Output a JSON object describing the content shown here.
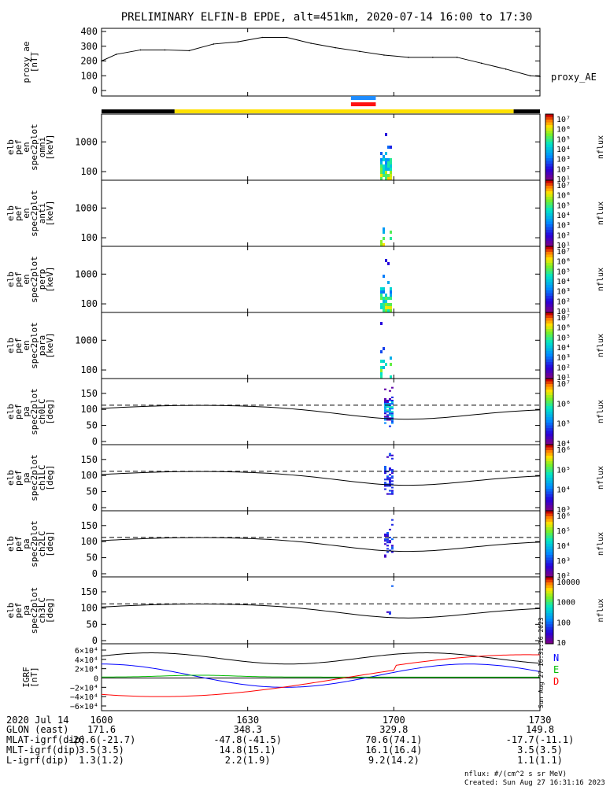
{
  "title": "PRELIMINARY ELFIN-B EPDE, alt=451km, 2020-07-14 16:00 to 17:30",
  "colors": {
    "black": "#000000",
    "yellow": "#ffe000",
    "blue": "#1e8cff",
    "red": "#ff1010",
    "grf_n": "#0000ff",
    "grf_e": "#00bb00",
    "grf_d": "#ff0000"
  },
  "chart_data": [
    {
      "type": "line",
      "id": "proxy_ae",
      "ylabel": [
        "proxy_ae",
        "[nT]"
      ],
      "series_label": "proxy_AE",
      "ylim": [
        0,
        400
      ],
      "yticks": [
        "400",
        "300",
        "200",
        "100",
        "0"
      ],
      "x": [
        0,
        3,
        8,
        13,
        18,
        23,
        28,
        33,
        38,
        43,
        48,
        53,
        58,
        63,
        68,
        73,
        78,
        83,
        88,
        90
      ],
      "values": [
        200,
        245,
        275,
        275,
        270,
        315,
        330,
        360,
        360,
        320,
        290,
        265,
        240,
        225,
        225,
        225,
        185,
        145,
        100,
        95
      ]
    },
    {
      "type": "bar",
      "id": "orbit_bar",
      "segments": [
        {
          "x0": 0,
          "x1": 15,
          "color": "black"
        },
        {
          "x0": 15,
          "x1": 84.6,
          "color": "yellow"
        },
        {
          "x0": 84.6,
          "x1": 90,
          "color": "black"
        }
      ],
      "markers": [
        {
          "x0": 51.2,
          "x1": 56.3,
          "color": "blue"
        },
        {
          "x0": 51.2,
          "x1": 56.3,
          "color": "red"
        }
      ]
    },
    {
      "type": "heatmap",
      "id": "omni",
      "ylabel": [
        "elb",
        "pef",
        "en",
        "spec2plot",
        "omni",
        "[keV]"
      ],
      "yticks": [
        "1000",
        "100"
      ],
      "colorbar": {
        "ticks": [
          "10⁷",
          "10⁶",
          "10⁵",
          "10⁴",
          "10³",
          "10²",
          "10¹"
        ],
        "label": "nflux"
      }
    },
    {
      "type": "heatmap",
      "id": "anti",
      "ylabel": [
        "elb",
        "pef",
        "en",
        "spec2plot",
        "anti",
        "[keV]"
      ],
      "yticks": [
        "1000",
        "100"
      ],
      "colorbar": {
        "ticks": [
          "10⁷",
          "10⁶",
          "10⁵",
          "10⁴",
          "10³",
          "10²",
          "10¹"
        ],
        "label": "nflux"
      }
    },
    {
      "type": "heatmap",
      "id": "perp",
      "ylabel": [
        "elb",
        "pef",
        "en",
        "spec2plot",
        "perp",
        "[keV]"
      ],
      "yticks": [
        "1000",
        "100"
      ],
      "colorbar": {
        "ticks": [
          "10⁷",
          "10⁶",
          "10⁵",
          "10⁴",
          "10³",
          "10²",
          "10¹"
        ],
        "label": "nflux"
      }
    },
    {
      "type": "heatmap",
      "id": "para",
      "ylabel": [
        "elb",
        "pef",
        "en",
        "spec2plot",
        "para",
        "[keV]"
      ],
      "yticks": [
        "1000",
        "100"
      ],
      "colorbar": {
        "ticks": [
          "10⁷",
          "10⁶",
          "10⁵",
          "10⁴",
          "10³",
          "10²",
          "10¹"
        ],
        "label": "nflux"
      }
    },
    {
      "type": "heatmap",
      "id": "ch0LC",
      "ylabel": [
        "elb",
        "pef",
        "pa",
        "spec2plot",
        "ch0LC",
        "[deg]"
      ],
      "yticks": [
        "150",
        "100",
        "50",
        "0"
      ],
      "colorbar": {
        "ticks": [
          "10⁷",
          "10⁶",
          "10⁵",
          "10⁴"
        ],
        "label": "nflux"
      }
    },
    {
      "type": "heatmap",
      "id": "ch1LC",
      "ylabel": [
        "elb",
        "pef",
        "pa",
        "spec2plot",
        "ch1LC",
        "[deg]"
      ],
      "yticks": [
        "150",
        "100",
        "50",
        "0"
      ],
      "colorbar": {
        "ticks": [
          "10⁶",
          "10⁵",
          "10⁴",
          "10³"
        ],
        "label": "nflux"
      }
    },
    {
      "type": "heatmap",
      "id": "ch2LC",
      "ylabel": [
        "elb",
        "pef",
        "pa",
        "spec2plot",
        "ch2LC",
        "[deg]"
      ],
      "yticks": [
        "150",
        "100",
        "50",
        "0"
      ],
      "colorbar": {
        "ticks": [
          "10⁶",
          "10⁵",
          "10⁴",
          "10³",
          "10²"
        ],
        "label": "nflux"
      }
    },
    {
      "type": "heatmap",
      "id": "ch3LC",
      "ylabel": [
        "elb",
        "pef",
        "pa",
        "spec2plot",
        "ch3LC",
        "[deg]"
      ],
      "yticks": [
        "150",
        "100",
        "50",
        "0"
      ],
      "colorbar": {
        "ticks": [
          "10000",
          "1000",
          "100",
          "10"
        ],
        "label": "nflux"
      }
    },
    {
      "type": "line",
      "id": "igrf",
      "ylabel": [
        "IGRF",
        "[nT]"
      ],
      "yticks": [
        "6×10⁴",
        "4×10⁴",
        "2×10⁴",
        "0",
        "−2×10⁴",
        "−4×10⁴",
        "−6×10⁴"
      ],
      "legend": [
        "N",
        "E",
        "D"
      ],
      "side_text": "Sun Aug 27 16:31:16 2023",
      "series": [
        {
          "name": "N",
          "color": "grf_n"
        },
        {
          "name": "E",
          "color": "grf_e"
        },
        {
          "name": "D",
          "color": "grf_d"
        }
      ]
    }
  ],
  "xaxis": {
    "row_labels": [
      "2020 Jul 14",
      "GLON (east)",
      "MLAT-igrf(dip)",
      "MLT-igrf(dip)",
      "L-igrf(dip)"
    ],
    "columns": [
      {
        "x": 0,
        "values": [
          "1600",
          "171.6",
          "-26.6(-21.7)",
          "3.5(3.5)",
          "1.3(1.2)"
        ]
      },
      {
        "x": 30,
        "values": [
          "1630",
          "348.3",
          "-47.8(-41.5)",
          "14.8(15.1)",
          "2.2(1.9)"
        ]
      },
      {
        "x": 60,
        "values": [
          "1700",
          "329.8",
          "70.6(74.1)",
          "16.1(16.4)",
          "9.2(14.2)"
        ]
      },
      {
        "x": 90,
        "values": [
          "1730",
          "149.8",
          "-17.7(-11.1)",
          "3.5(3.5)",
          "1.1(1.1)"
        ]
      }
    ]
  },
  "footer": {
    "line1": "nflux: #/(cm^2 s sr MeV)",
    "line2": "Created: Sun Aug 27 16:31:16 2023"
  }
}
